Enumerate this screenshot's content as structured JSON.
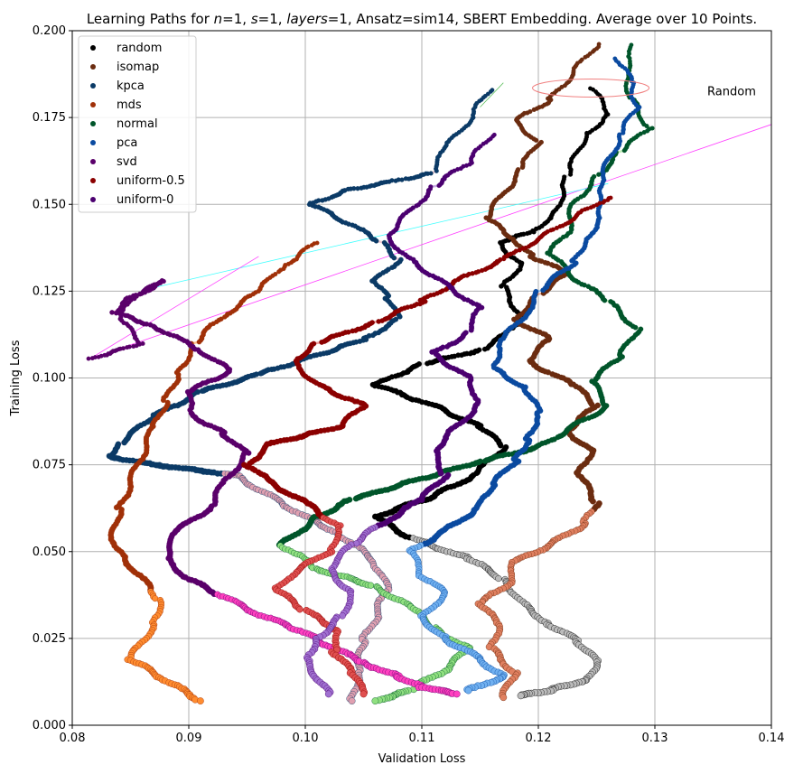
{
  "chart_data": {
    "type": "scatter",
    "title_parts": [
      {
        "text": "Learning Paths for ",
        "italic": false
      },
      {
        "text": "n",
        "italic": true
      },
      {
        "text": "=1, ",
        "italic": false
      },
      {
        "text": "s",
        "italic": true
      },
      {
        "text": "=1, ",
        "italic": false
      },
      {
        "text": "layers",
        "italic": true
      },
      {
        "text": "=1, Ansatz=sim14, SBERT Embedding. Average over 10 Points.",
        "italic": false
      }
    ],
    "xlabel": "Validation Loss",
    "ylabel": "Training Loss",
    "xlim": [
      0.08,
      0.14
    ],
    "ylim": [
      0.0,
      0.2
    ],
    "xticks": [
      "0.08",
      "0.09",
      "0.10",
      "0.11",
      "0.12",
      "0.13",
      "0.14"
    ],
    "yticks": [
      "0.000",
      "0.025",
      "0.050",
      "0.075",
      "0.100",
      "0.125",
      "0.150",
      "0.175",
      "0.200"
    ],
    "grid": true,
    "legend_position": "top-left",
    "annotation": {
      "text": "Random",
      "x": 0.1345,
      "y": 0.1825
    },
    "random_circle": {
      "cx": 0.1245,
      "cy": 0.1835,
      "rx": 0.005,
      "ry": 0.005,
      "color": "#f08080"
    },
    "series": [
      {
        "name": "random",
        "color": "#000000",
        "trail": "#bbbbbb",
        "points": [
          [
            0.1245,
            0.1835
          ],
          [
            0.1262,
            0.176
          ],
          [
            0.124,
            0.17
          ],
          [
            0.1225,
            0.158
          ],
          [
            0.1215,
            0.148
          ],
          [
            0.1195,
            0.142
          ],
          [
            0.1165,
            0.139
          ],
          [
            0.1185,
            0.133
          ],
          [
            0.117,
            0.126
          ],
          [
            0.1185,
            0.118
          ],
          [
            0.117,
            0.112
          ],
          [
            0.115,
            0.108
          ],
          [
            0.11,
            0.104
          ],
          [
            0.106,
            0.098
          ],
          [
            0.111,
            0.092
          ],
          [
            0.115,
            0.086
          ],
          [
            0.117,
            0.08
          ],
          [
            0.1145,
            0.072
          ],
          [
            0.111,
            0.066
          ],
          [
            0.106,
            0.06
          ],
          [
            0.109,
            0.054
          ],
          [
            0.114,
            0.048
          ],
          [
            0.117,
            0.042
          ],
          [
            0.119,
            0.034
          ],
          [
            0.121,
            0.029
          ],
          [
            0.1235,
            0.024
          ],
          [
            0.125,
            0.018
          ],
          [
            0.124,
            0.013
          ],
          [
            0.121,
            0.01
          ],
          [
            0.1185,
            0.0085
          ]
        ]
      },
      {
        "name": "isomap",
        "color": "#6b2c10",
        "trail": "#e08060",
        "points": [
          [
            0.125,
            0.196
          ],
          [
            0.123,
            0.188
          ],
          [
            0.121,
            0.18
          ],
          [
            0.118,
            0.174
          ],
          [
            0.12,
            0.168
          ],
          [
            0.1185,
            0.16
          ],
          [
            0.117,
            0.153
          ],
          [
            0.1155,
            0.146
          ],
          [
            0.118,
            0.14
          ],
          [
            0.1195,
            0.135
          ],
          [
            0.1225,
            0.13
          ],
          [
            0.12,
            0.124
          ],
          [
            0.118,
            0.117
          ],
          [
            0.121,
            0.111
          ],
          [
            0.119,
            0.105
          ],
          [
            0.123,
            0.098
          ],
          [
            0.125,
            0.092
          ],
          [
            0.1225,
            0.085
          ],
          [
            0.1245,
            0.079
          ],
          [
            0.1235,
            0.072
          ],
          [
            0.125,
            0.064
          ],
          [
            0.124,
            0.058
          ],
          [
            0.121,
            0.052
          ],
          [
            0.118,
            0.047
          ],
          [
            0.1175,
            0.041
          ],
          [
            0.115,
            0.035
          ],
          [
            0.1165,
            0.029
          ],
          [
            0.116,
            0.022
          ],
          [
            0.118,
            0.015
          ],
          [
            0.117,
            0.008
          ]
        ]
      },
      {
        "name": "kpca",
        "color": "#0b3a66",
        "trail": "#e0a0b0",
        "points": [
          [
            0.1158,
            0.183
          ],
          [
            0.114,
            0.174
          ],
          [
            0.112,
            0.166
          ],
          [
            0.111,
            0.159
          ],
          [
            0.1035,
            0.154
          ],
          [
            0.1005,
            0.15
          ],
          [
            0.104,
            0.144
          ],
          [
            0.1065,
            0.139
          ],
          [
            0.108,
            0.134
          ],
          [
            0.106,
            0.128
          ],
          [
            0.107,
            0.123
          ],
          [
            0.108,
            0.117
          ],
          [
            0.105,
            0.111
          ],
          [
            0.1005,
            0.106
          ],
          [
            0.096,
            0.101
          ],
          [
            0.091,
            0.096
          ],
          [
            0.087,
            0.089
          ],
          [
            0.084,
            0.081
          ],
          [
            0.083,
            0.0775
          ],
          [
            0.087,
            0.075
          ],
          [
            0.094,
            0.072
          ],
          [
            0.097,
            0.066
          ],
          [
            0.1,
            0.06
          ],
          [
            0.103,
            0.055
          ],
          [
            0.106,
            0.047
          ],
          [
            0.107,
            0.039
          ],
          [
            0.106,
            0.031
          ],
          [
            0.105,
            0.024
          ],
          [
            0.1045,
            0.015
          ],
          [
            0.104,
            0.007
          ]
        ]
      },
      {
        "name": "mds",
        "color": "#a03008",
        "trail": "#ff8c30",
        "points": [
          [
            0.101,
            0.139
          ],
          [
            0.098,
            0.132
          ],
          [
            0.096,
            0.125
          ],
          [
            0.093,
            0.118
          ],
          [
            0.0905,
            0.11
          ],
          [
            0.089,
            0.101
          ],
          [
            0.088,
            0.093
          ],
          [
            0.087,
            0.086
          ],
          [
            0.086,
            0.078
          ],
          [
            0.085,
            0.07
          ],
          [
            0.084,
            0.062
          ],
          [
            0.0835,
            0.054
          ],
          [
            0.0845,
            0.048
          ],
          [
            0.086,
            0.042
          ],
          [
            0.0875,
            0.036
          ],
          [
            0.087,
            0.029
          ],
          [
            0.086,
            0.024
          ],
          [
            0.085,
            0.019
          ],
          [
            0.087,
            0.015
          ],
          [
            0.089,
            0.011
          ],
          [
            0.091,
            0.007
          ]
        ]
      },
      {
        "name": "normal",
        "color": "#00552a",
        "trail": "#90e080",
        "points": [
          [
            0.1282,
            0.196
          ],
          [
            0.1275,
            0.188
          ],
          [
            0.128,
            0.18
          ],
          [
            0.1295,
            0.172
          ],
          [
            0.127,
            0.165
          ],
          [
            0.125,
            0.158
          ],
          [
            0.123,
            0.15
          ],
          [
            0.1225,
            0.142
          ],
          [
            0.121,
            0.136
          ],
          [
            0.123,
            0.129
          ],
          [
            0.126,
            0.122
          ],
          [
            0.1285,
            0.114
          ],
          [
            0.127,
            0.106
          ],
          [
            0.1245,
            0.099
          ],
          [
            0.126,
            0.092
          ],
          [
            0.123,
            0.086
          ],
          [
            0.12,
            0.08
          ],
          [
            0.115,
            0.076
          ],
          [
            0.109,
            0.07
          ],
          [
            0.104,
            0.065
          ],
          [
            0.101,
            0.06
          ],
          [
            0.098,
            0.052
          ],
          [
            0.101,
            0.045
          ],
          [
            0.106,
            0.04
          ],
          [
            0.109,
            0.034
          ],
          [
            0.111,
            0.028
          ],
          [
            0.114,
            0.022
          ],
          [
            0.112,
            0.016
          ],
          [
            0.109,
            0.01
          ],
          [
            0.106,
            0.007
          ]
        ]
      },
      {
        "name": "pca",
        "color": "#0a4aa0",
        "trail": "#70b0f0",
        "points": [
          [
            0.1268,
            0.192
          ],
          [
            0.128,
            0.185
          ],
          [
            0.1285,
            0.178
          ],
          [
            0.127,
            0.17
          ],
          [
            0.126,
            0.162
          ],
          [
            0.125,
            0.154
          ],
          [
            0.1255,
            0.146
          ],
          [
            0.124,
            0.14
          ],
          [
            0.123,
            0.133
          ],
          [
            0.12,
            0.125
          ],
          [
            0.119,
            0.119
          ],
          [
            0.117,
            0.111
          ],
          [
            0.116,
            0.103
          ],
          [
            0.119,
            0.097
          ],
          [
            0.12,
            0.09
          ],
          [
            0.119,
            0.082
          ],
          [
            0.118,
            0.076
          ],
          [
            0.116,
            0.069
          ],
          [
            0.115,
            0.063
          ],
          [
            0.112,
            0.056
          ],
          [
            0.109,
            0.05
          ],
          [
            0.11,
            0.043
          ],
          [
            0.112,
            0.038
          ],
          [
            0.11,
            0.031
          ],
          [
            0.112,
            0.025
          ],
          [
            0.115,
            0.019
          ],
          [
            0.117,
            0.014
          ],
          [
            0.114,
            0.01
          ]
        ]
      },
      {
        "name": "svd",
        "color": "#5a006a",
        "trail": "#ff40c0",
        "points": [
          [
            0.0815,
            0.1055
          ],
          [
            0.086,
            0.11
          ],
          [
            0.084,
            0.117
          ],
          [
            0.0855,
            0.124
          ],
          [
            0.088,
            0.128
          ],
          [
            0.085,
            0.123
          ],
          [
            0.0835,
            0.119
          ],
          [
            0.087,
            0.115
          ],
          [
            0.091,
            0.108
          ],
          [
            0.0935,
            0.102
          ],
          [
            0.09,
            0.096
          ],
          [
            0.09,
            0.09
          ],
          [
            0.093,
            0.084
          ],
          [
            0.095,
            0.078
          ],
          [
            0.093,
            0.07
          ],
          [
            0.092,
            0.063
          ],
          [
            0.089,
            0.056
          ],
          [
            0.088,
            0.048
          ],
          [
            0.09,
            0.042
          ],
          [
            0.093,
            0.037
          ],
          [
            0.096,
            0.032
          ],
          [
            0.099,
            0.028
          ],
          [
            0.102,
            0.023
          ],
          [
            0.105,
            0.018
          ],
          [
            0.108,
            0.014
          ],
          [
            0.11,
            0.011
          ],
          [
            0.113,
            0.009
          ]
        ]
      },
      {
        "name": "uniform-0.5",
        "color": "#8b0000",
        "trail": "#e05050",
        "points": [
          [
            0.126,
            0.152
          ],
          [
            0.123,
            0.146
          ],
          [
            0.12,
            0.14
          ],
          [
            0.117,
            0.134
          ],
          [
            0.113,
            0.128
          ],
          [
            0.11,
            0.122
          ],
          [
            0.106,
            0.116
          ],
          [
            0.101,
            0.11
          ],
          [
            0.099,
            0.105
          ],
          [
            0.101,
            0.098
          ],
          [
            0.105,
            0.092
          ],
          [
            0.103,
            0.086
          ],
          [
            0.097,
            0.081
          ],
          [
            0.095,
            0.075
          ],
          [
            0.097,
            0.07
          ],
          [
            0.1,
            0.064
          ],
          [
            0.103,
            0.057
          ],
          [
            0.102,
            0.05
          ],
          [
            0.099,
            0.044
          ],
          [
            0.0975,
            0.039
          ],
          [
            0.1,
            0.033
          ],
          [
            0.103,
            0.027
          ],
          [
            0.1025,
            0.021
          ],
          [
            0.104,
            0.015
          ],
          [
            0.105,
            0.009
          ]
        ]
      },
      {
        "name": "uniform-0",
        "color": "#4b0070",
        "trail": "#a070d0",
        "points": [
          [
            0.116,
            0.17
          ],
          [
            0.114,
            0.162
          ],
          [
            0.111,
            0.155
          ],
          [
            0.109,
            0.148
          ],
          [
            0.107,
            0.141
          ],
          [
            0.109,
            0.134
          ],
          [
            0.112,
            0.127
          ],
          [
            0.115,
            0.12
          ],
          [
            0.114,
            0.113
          ],
          [
            0.111,
            0.107
          ],
          [
            0.114,
            0.1
          ],
          [
            0.115,
            0.093
          ],
          [
            0.113,
            0.086
          ],
          [
            0.111,
            0.079
          ],
          [
            0.112,
            0.072
          ],
          [
            0.11,
            0.065
          ],
          [
            0.107,
            0.059
          ],
          [
            0.104,
            0.052
          ],
          [
            0.102,
            0.045
          ],
          [
            0.104,
            0.038
          ],
          [
            0.103,
            0.031
          ],
          [
            0.101,
            0.025
          ],
          [
            0.1,
            0.019
          ],
          [
            0.101,
            0.014
          ],
          [
            0.102,
            0.009
          ]
        ]
      }
    ],
    "connector_lines": [
      {
        "color": "#ff40ff",
        "from": [
          0.0815,
          0.1055
        ],
        "to": [
          0.14,
          0.173
        ]
      },
      {
        "color": "#40ffff",
        "from": [
          0.087,
          0.126
        ],
        "to": [
          0.126,
          0.156
        ]
      },
      {
        "color": "#ff40ff",
        "from": [
          0.0815,
          0.1055
        ],
        "to": [
          0.096,
          0.135
        ]
      },
      {
        "color": "#60c060",
        "from": [
          0.115,
          0.178
        ],
        "to": [
          0.117,
          0.185
        ]
      }
    ]
  }
}
